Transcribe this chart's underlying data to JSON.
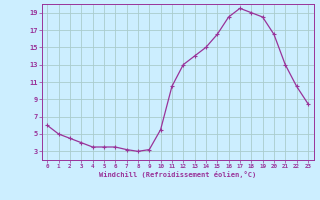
{
  "x": [
    0,
    1,
    2,
    3,
    4,
    5,
    6,
    7,
    8,
    9,
    10,
    11,
    12,
    13,
    14,
    15,
    16,
    17,
    18,
    19,
    20,
    21,
    22,
    23
  ],
  "y": [
    6.0,
    5.0,
    4.5,
    4.0,
    3.5,
    3.5,
    3.5,
    3.2,
    3.0,
    3.2,
    5.5,
    10.5,
    13.0,
    14.0,
    15.0,
    16.5,
    18.5,
    19.5,
    19.0,
    18.5,
    16.5,
    13.0,
    10.5,
    8.5
  ],
  "line_color": "#993399",
  "marker": "+",
  "marker_size": 3,
  "bg_color": "#cceeff",
  "grid_color": "#aacccc",
  "xlabel": "Windchill (Refroidissement éolien,°C)",
  "xlabel_color": "#993399",
  "tick_color": "#993399",
  "ylim": [
    2.0,
    20.0
  ],
  "xlim": [
    -0.5,
    23.5
  ],
  "yticks": [
    3,
    5,
    7,
    9,
    11,
    13,
    15,
    17,
    19
  ],
  "xticks": [
    0,
    1,
    2,
    3,
    4,
    5,
    6,
    7,
    8,
    9,
    10,
    11,
    12,
    13,
    14,
    15,
    16,
    17,
    18,
    19,
    20,
    21,
    22,
    23
  ],
  "line_width": 0.9,
  "marker_color": "#993399"
}
